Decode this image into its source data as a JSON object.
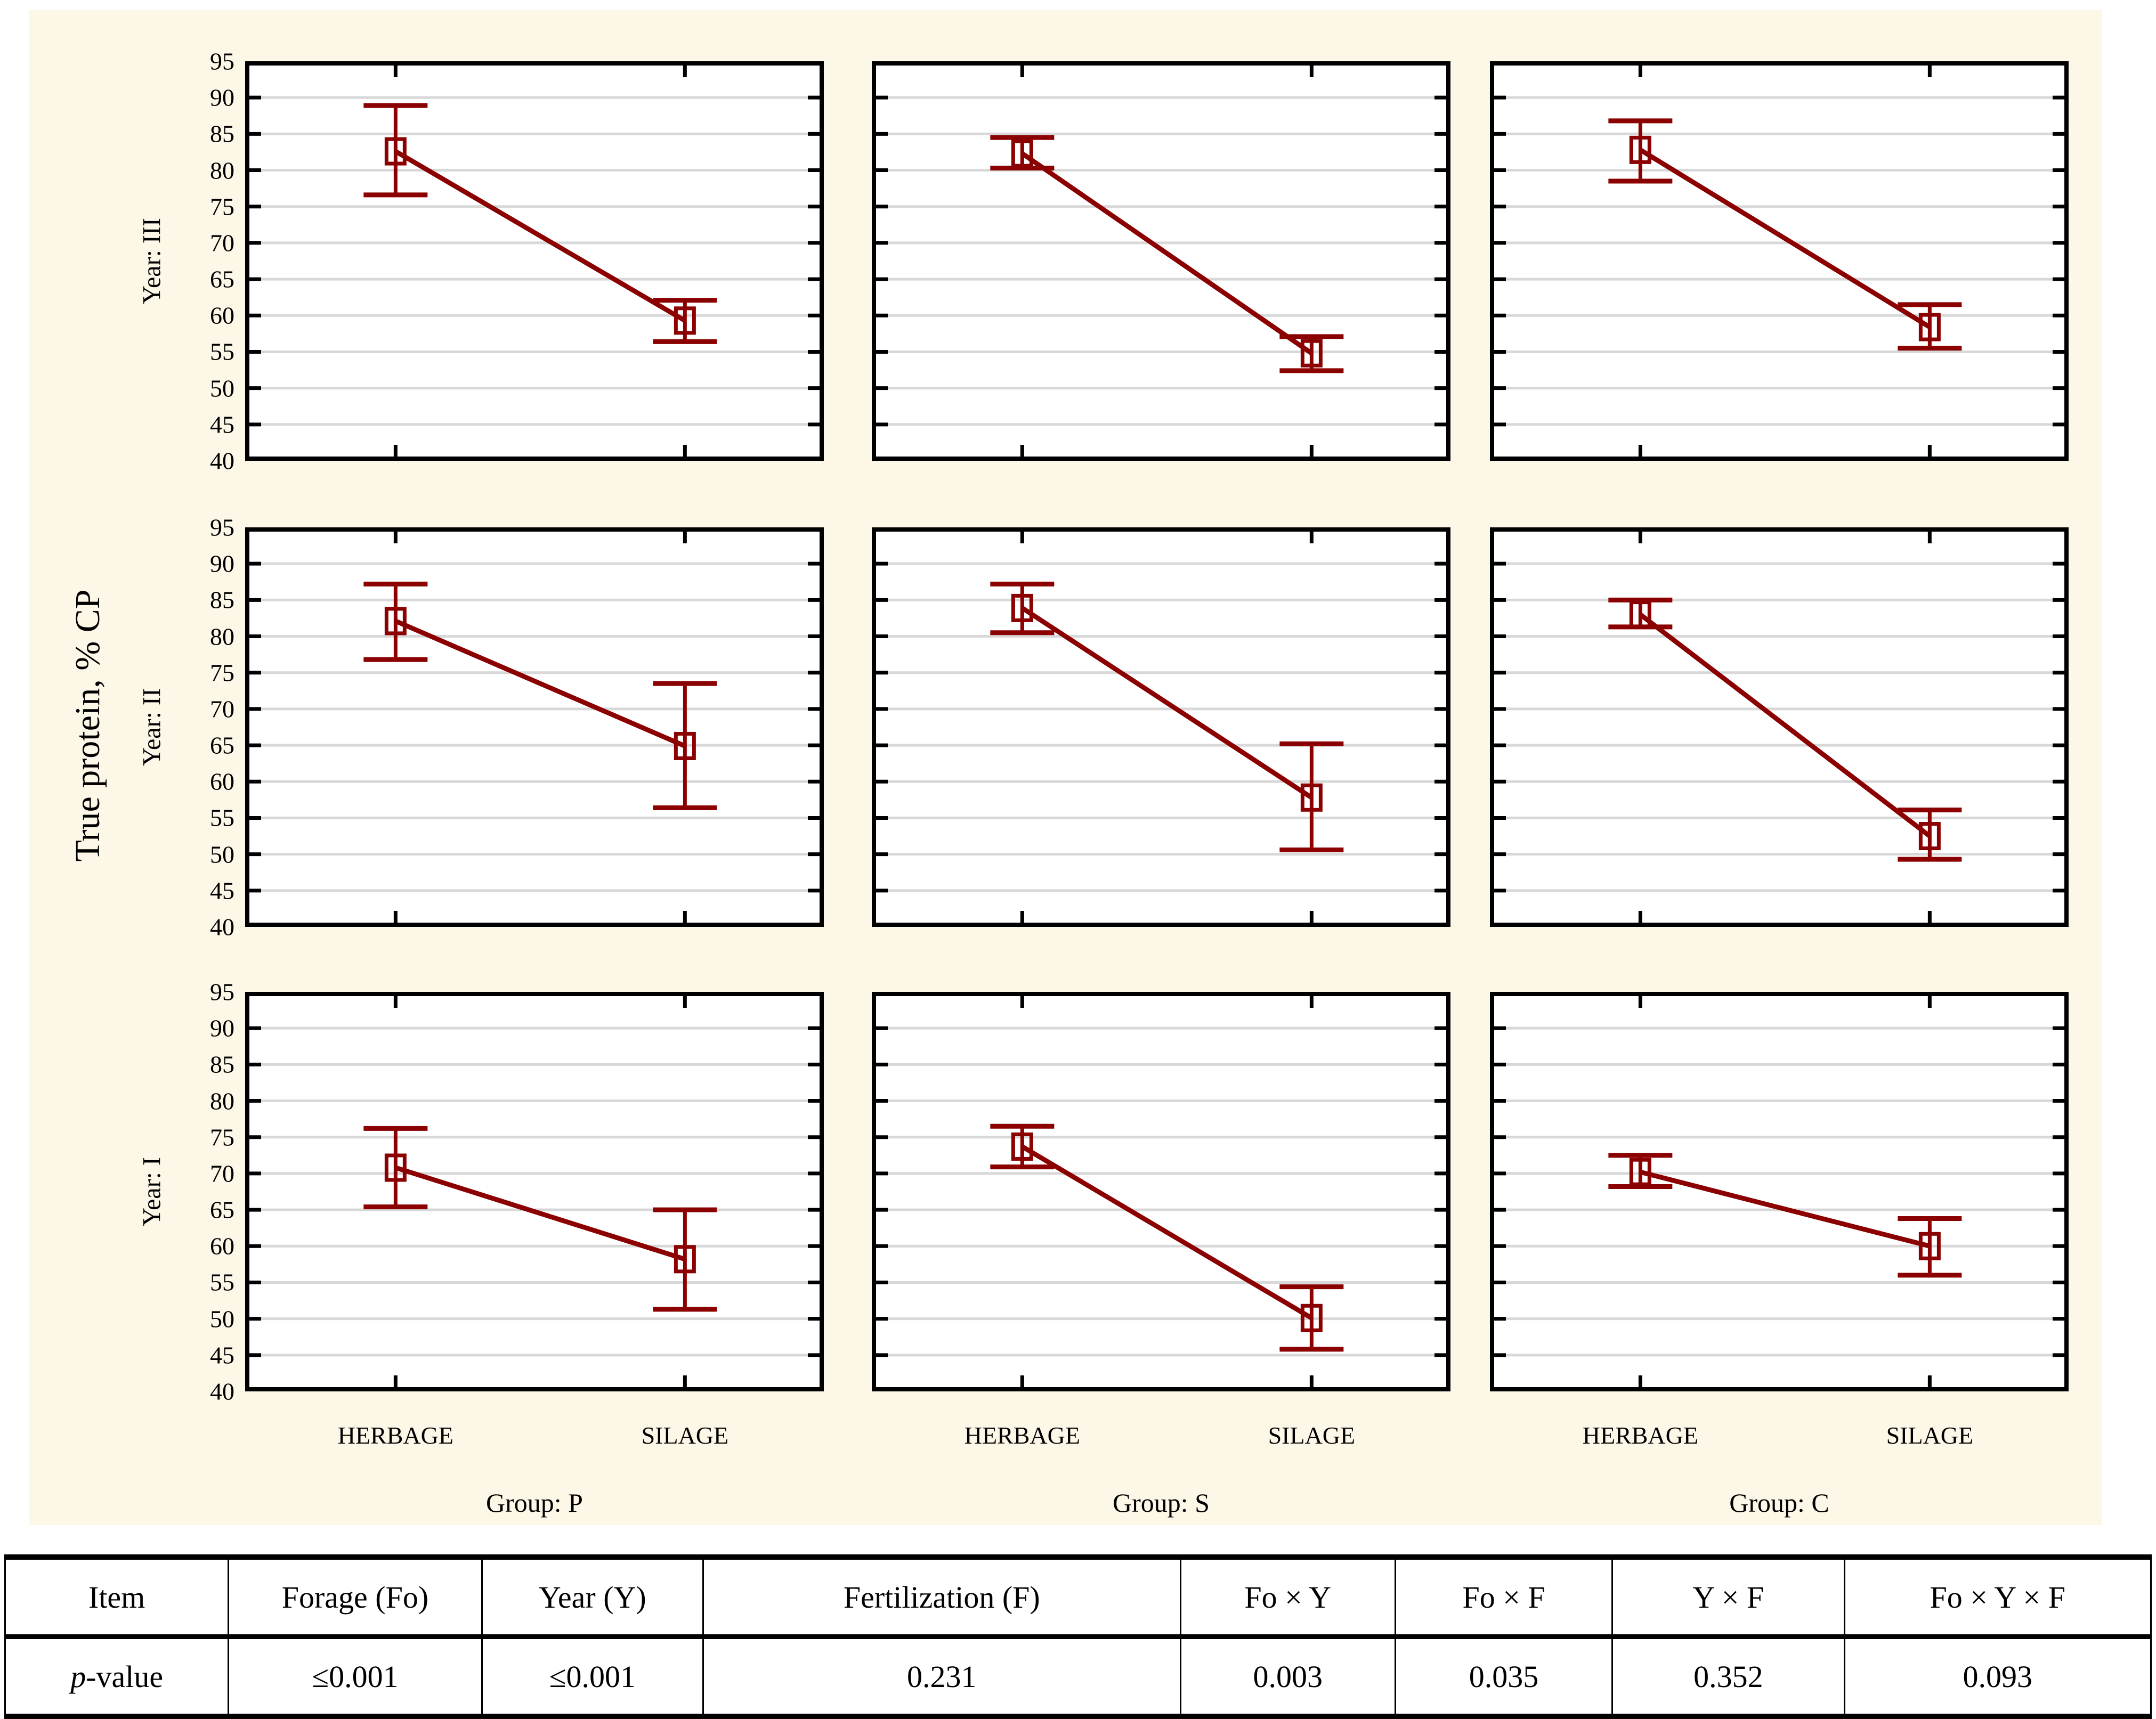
{
  "figure": {
    "background_color": "#FDF7E8",
    "accent_color": "#8B0000",
    "grid_color": "#D8D8D8",
    "frame_color": "#000000"
  },
  "chart_data": {
    "type": "line",
    "title": "",
    "ylabel": "True protein, % CP",
    "xlabel": "",
    "ylim": [
      40,
      95
    ],
    "ytick_step": 5,
    "grid": true,
    "legend": "none",
    "categories": [
      "HERBAGE",
      "SILAGE"
    ],
    "column_labels": [
      "Group: P",
      "Group: S",
      "Group: C"
    ],
    "row_labels": [
      "Year: III",
      "Year: II",
      "Year: I"
    ],
    "panels": [
      {
        "row": "Year: III",
        "col": "Group: P",
        "points": [
          {
            "category": "HERBAGE",
            "mean": 82.6,
            "lo": 76.6,
            "hi": 88.9
          },
          {
            "category": "SILAGE",
            "mean": 59.3,
            "lo": 56.4,
            "hi": 62.1
          }
        ]
      },
      {
        "row": "Year: III",
        "col": "Group: S",
        "points": [
          {
            "category": "HERBAGE",
            "mean": 82.3,
            "lo": 80.3,
            "hi": 84.5
          },
          {
            "category": "SILAGE",
            "mean": 54.8,
            "lo": 52.4,
            "hi": 57.1
          }
        ]
      },
      {
        "row": "Year: III",
        "col": "Group: C",
        "points": [
          {
            "category": "HERBAGE",
            "mean": 82.8,
            "lo": 78.5,
            "hi": 86.8
          },
          {
            "category": "SILAGE",
            "mean": 58.4,
            "lo": 55.5,
            "hi": 61.5
          }
        ]
      },
      {
        "row": "Year: II",
        "col": "Group: P",
        "points": [
          {
            "category": "HERBAGE",
            "mean": 82.1,
            "lo": 76.8,
            "hi": 87.2
          },
          {
            "category": "SILAGE",
            "mean": 64.9,
            "lo": 56.4,
            "hi": 73.5
          }
        ]
      },
      {
        "row": "Year: II",
        "col": "Group: S",
        "points": [
          {
            "category": "HERBAGE",
            "mean": 83.9,
            "lo": 80.5,
            "hi": 87.2
          },
          {
            "category": "SILAGE",
            "mean": 57.8,
            "lo": 50.6,
            "hi": 65.2
          }
        ]
      },
      {
        "row": "Year: II",
        "col": "Group: C",
        "points": [
          {
            "category": "HERBAGE",
            "mean": 83.0,
            "lo": 81.3,
            "hi": 85.0
          },
          {
            "category": "SILAGE",
            "mean": 52.5,
            "lo": 49.3,
            "hi": 56.1
          }
        ]
      },
      {
        "row": "Year: I",
        "col": "Group: P",
        "points": [
          {
            "category": "HERBAGE",
            "mean": 70.8,
            "lo": 65.4,
            "hi": 76.2
          },
          {
            "category": "SILAGE",
            "mean": 58.2,
            "lo": 51.3,
            "hi": 65.0
          }
        ]
      },
      {
        "row": "Year: I",
        "col": "Group: S",
        "points": [
          {
            "category": "HERBAGE",
            "mean": 73.7,
            "lo": 70.9,
            "hi": 76.5
          },
          {
            "category": "SILAGE",
            "mean": 50.1,
            "lo": 45.8,
            "hi": 54.4
          }
        ]
      },
      {
        "row": "Year: I",
        "col": "Group: C",
        "points": [
          {
            "category": "HERBAGE",
            "mean": 70.2,
            "lo": 68.2,
            "hi": 72.5
          },
          {
            "category": "SILAGE",
            "mean": 60.0,
            "lo": 56.0,
            "hi": 63.8
          }
        ]
      }
    ]
  },
  "table": {
    "headers": [
      "Item",
      "Forage (Fo)",
      "Year (Y)",
      "Fertilization (F)",
      "Fo × Y",
      "Fo × F",
      "Y × F",
      "Fo × Y × F"
    ],
    "row": [
      "p-value",
      "≤0.001",
      "≤0.001",
      "0.231",
      "0.003",
      "0.035",
      "0.352",
      "0.093"
    ]
  }
}
